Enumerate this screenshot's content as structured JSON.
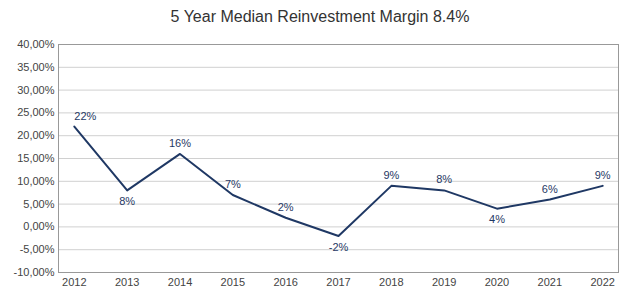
{
  "chart_data": {
    "type": "line",
    "title": "5 Year Median Reinvestment Margin 8.4%",
    "x": [
      2012,
      2013,
      2014,
      2015,
      2016,
      2017,
      2018,
      2019,
      2020,
      2021,
      2022
    ],
    "values": [
      0.22,
      0.08,
      0.16,
      0.07,
      0.02,
      -0.02,
      0.09,
      0.08,
      0.04,
      0.06,
      0.09
    ],
    "value_labels": [
      "22%",
      "8%",
      "16%",
      "7%",
      "2%",
      "-2%",
      "9%",
      "8%",
      "4%",
      "6%",
      "9%"
    ],
    "data_labels": true,
    "color": "#1F3864",
    "xlim": [
      2011.7,
      2022.3
    ],
    "xticks": [
      2012,
      2013,
      2014,
      2015,
      2016,
      2017,
      2018,
      2019,
      2020,
      2021,
      2022
    ],
    "ylim": [
      -0.1,
      0.4
    ],
    "yticks": [
      {
        "value": -0.1,
        "label": "-10,00%"
      },
      {
        "value": -0.05,
        "label": "-5,00%"
      },
      {
        "value": 0.0,
        "label": "0,00%"
      },
      {
        "value": 0.05,
        "label": "5,00%"
      },
      {
        "value": 0.1,
        "label": "10,00%"
      },
      {
        "value": 0.15,
        "label": "15,00%"
      },
      {
        "value": 0.2,
        "label": "20,00%"
      },
      {
        "value": 0.25,
        "label": "25,00%"
      },
      {
        "value": 0.3,
        "label": "30,00%"
      },
      {
        "value": 0.35,
        "label": "35,00%"
      },
      {
        "value": 0.4,
        "label": "40,00%"
      }
    ],
    "grid": true
  }
}
